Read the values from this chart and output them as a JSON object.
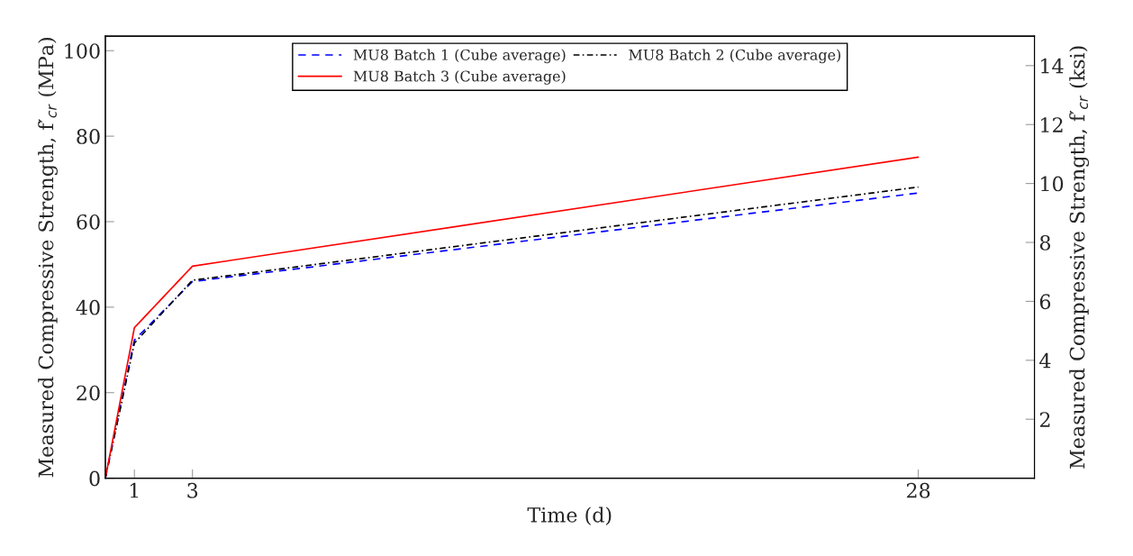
{
  "chart_data": {
    "type": "line",
    "xlabel": "Time (d)",
    "ylabel": "Measured Compressive Strength, f′$_{cr}$ (MPa)",
    "y2label": "Measured Compressive Strength, f′$_{cr}$ (ksi)",
    "x": [
      0,
      1,
      3,
      28
    ],
    "xlim": [
      0,
      32
    ],
    "xticks": [
      {
        "value": 0,
        "label": null
      },
      1,
      3,
      28
    ],
    "ylim": [
      0,
      103.4
    ],
    "yticks": [
      0,
      20,
      40,
      60,
      80,
      100
    ],
    "y2lim": [
      0,
      15
    ],
    "y2ticks": [
      2,
      4,
      6,
      8,
      10,
      12,
      14
    ],
    "series": [
      {
        "name": "MU8 Batch 1 (Cube average)",
        "color": "#0000ff",
        "line_style": "dashed",
        "values": [
          0,
          32.3,
          46.0,
          66.7
        ]
      },
      {
        "name": "MU8 Batch 2 (Cube average)",
        "color": "#000000",
        "line_style": "dashdot",
        "values": [
          0,
          31.6,
          46.3,
          68.1
        ]
      },
      {
        "name": "MU8 Batch 3 (Cube average)",
        "color": "#ff0000",
        "line_style": "solid",
        "values": [
          0,
          35.2,
          49.6,
          75.1
        ]
      }
    ],
    "grid": false,
    "legend": "top",
    "marker": "none"
  }
}
